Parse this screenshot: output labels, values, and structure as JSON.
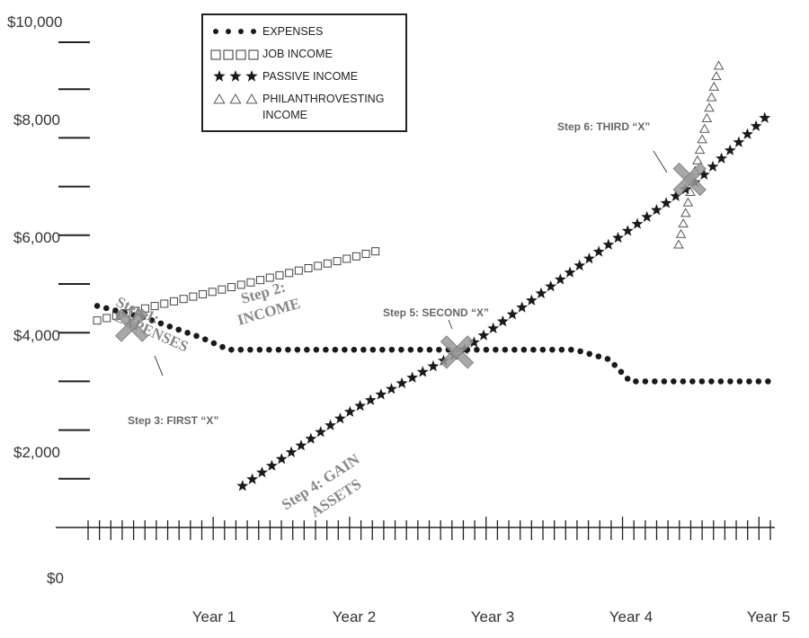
{
  "chart_data": {
    "type": "line",
    "x_tick_labels": [
      "Year 1",
      "Year 2",
      "Year 3",
      "Year 4",
      "Year 5"
    ],
    "y_tick_labels": [
      "$10,000",
      "$8,000",
      "$6,000",
      "$4,000",
      "$2,000",
      "$0"
    ],
    "ylim": [
      0,
      10000
    ],
    "xlim": [
      0,
      5.2
    ],
    "series": [
      {
        "name": "EXPENSES",
        "marker": "dot",
        "x": [
          0.15,
          0.5,
          0.9,
          1.1,
          1.5,
          2.0,
          2.5,
          3.0,
          3.3,
          3.6,
          3.85,
          4.0,
          4.5,
          5.0
        ],
        "y": [
          4550,
          4300,
          3900,
          3650,
          3650,
          3650,
          3650,
          3650,
          3650,
          3650,
          3450,
          3000,
          3000,
          3000
        ]
      },
      {
        "name": "JOB INCOME",
        "marker": "square",
        "x": [
          0.15,
          0.5,
          1.0,
          1.5,
          2.0,
          2.2
        ],
        "y": [
          4250,
          4500,
          4850,
          5200,
          5550,
          5700
        ]
      },
      {
        "name": "PASSIVE INCOME",
        "marker": "star",
        "x": [
          1.2,
          2.0,
          2.8,
          3.5,
          4.5,
          5.0
        ],
        "y": [
          850,
          2420,
          3650,
          5100,
          7150,
          8480
        ]
      },
      {
        "name": "PHILANTHROVESTING INCOME",
        "marker": "triangle",
        "x": [
          4.35,
          4.65
        ],
        "y": [
          5800,
          9600
        ]
      }
    ],
    "legend": [
      "EXPENSES",
      "JOB INCOME",
      "PASSIVE INCOME",
      "PHILANTHROVESTING",
      "INCOME"
    ],
    "annotations": {
      "step1": [
        "Step 1:",
        "EXPENSES"
      ],
      "step2": [
        "Step 2:",
        "INCOME"
      ],
      "step3": "Step 3: FIRST “X”",
      "step4": [
        "Step 4: GAIN",
        "ASSETS"
      ],
      "step5": "Step 5: SECOND “X”",
      "step6": "Step 6: THIRD “X”"
    },
    "crossings": [
      {
        "x": 0.4,
        "y": 4150
      },
      {
        "x": 2.75,
        "y": 3600
      },
      {
        "x": 4.43,
        "y": 7150
      }
    ],
    "grid": false,
    "legend_position": "top-left"
  }
}
